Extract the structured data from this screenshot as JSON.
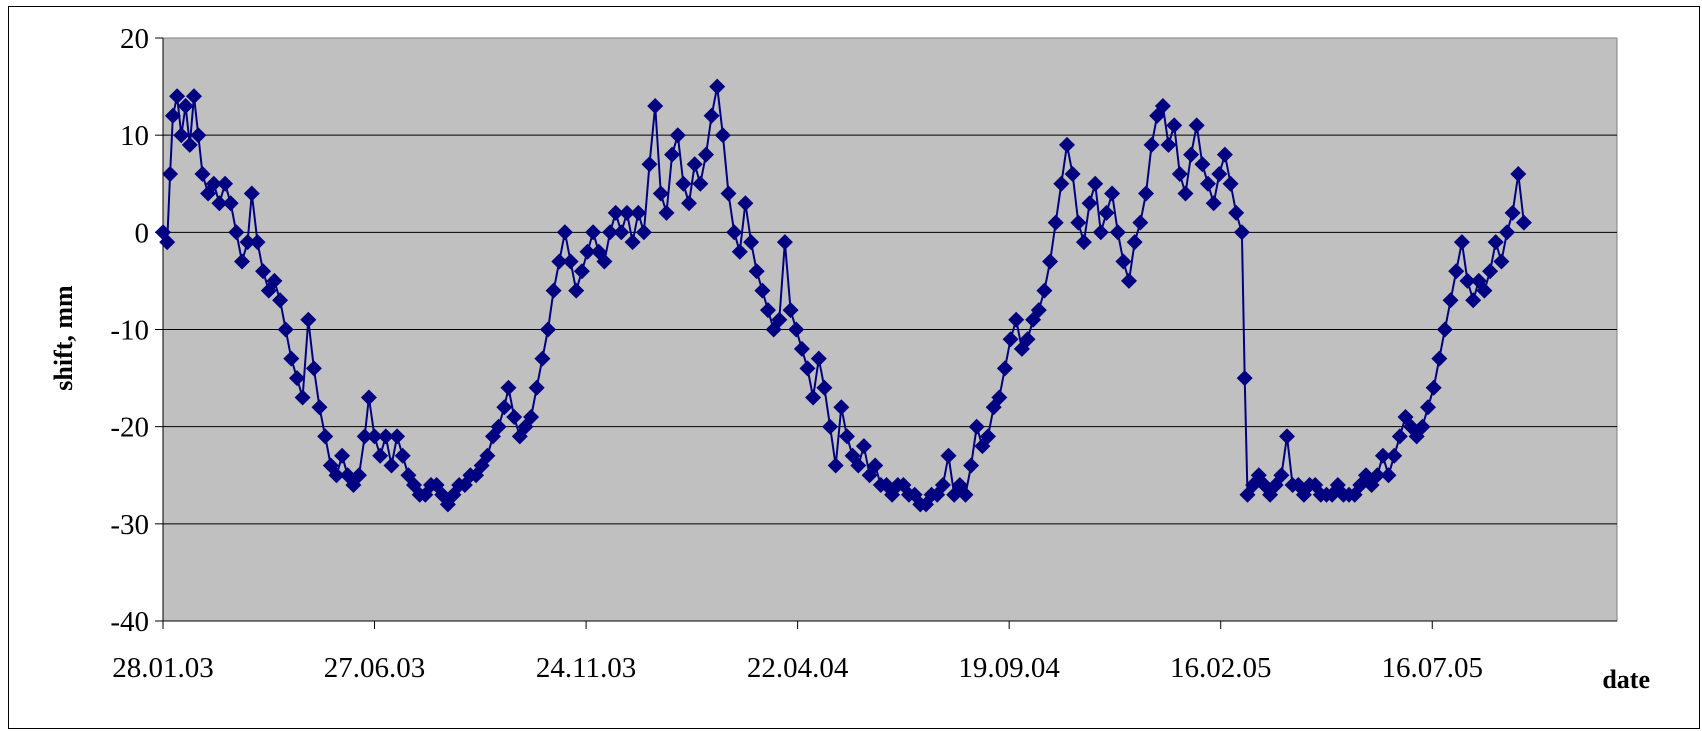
{
  "chart_data": {
    "type": "line",
    "title": "",
    "xlabel": "date",
    "ylabel": "shift, mm",
    "ylim": [
      -40,
      20
    ],
    "yticks": [
      20,
      10,
      0,
      -10,
      -20,
      -30,
      -40
    ],
    "xlim": [
      "28.01.03",
      "24.11.05"
    ],
    "xticks": [
      "28.01.03",
      "27.06.03",
      "24.11.03",
      "22.04.04",
      "19.09.04",
      "16.02.05",
      "16.07.05"
    ],
    "grid": "horizontal",
    "legend": "none",
    "colors": {
      "plot_background": "#c0c0c0",
      "series": "#000080",
      "gridline": "#000000"
    },
    "series": [
      {
        "marker": "diamond",
        "points": [
          {
            "x": "28.01.03",
            "y": 0
          },
          {
            "x": "31.01.03",
            "y": -1
          },
          {
            "x": "02.02.03",
            "y": 6
          },
          {
            "x": "04.02.03",
            "y": 12
          },
          {
            "x": "07.02.03",
            "y": 14
          },
          {
            "x": "10.02.03",
            "y": 10
          },
          {
            "x": "13.02.03",
            "y": 13
          },
          {
            "x": "16.02.03",
            "y": 9
          },
          {
            "x": "19.02.03",
            "y": 14
          },
          {
            "x": "22.02.03",
            "y": 10
          },
          {
            "x": "25.02.03",
            "y": 6
          },
          {
            "x": "01.03.03",
            "y": 4
          },
          {
            "x": "05.03.03",
            "y": 5
          },
          {
            "x": "09.03.03",
            "y": 3
          },
          {
            "x": "13.03.03",
            "y": 5
          },
          {
            "x": "17.03.03",
            "y": 3
          },
          {
            "x": "21.03.03",
            "y": 0
          },
          {
            "x": "25.03.03",
            "y": -3
          },
          {
            "x": "29.03.03",
            "y": -1
          },
          {
            "x": "01.04.03",
            "y": 4
          },
          {
            "x": "05.04.03",
            "y": -1
          },
          {
            "x": "09.04.03",
            "y": -4
          },
          {
            "x": "13.04.03",
            "y": -6
          },
          {
            "x": "17.04.03",
            "y": -5
          },
          {
            "x": "21.04.03",
            "y": -7
          },
          {
            "x": "25.04.03",
            "y": -10
          },
          {
            "x": "29.04.03",
            "y": -13
          },
          {
            "x": "03.05.03",
            "y": -15
          },
          {
            "x": "07.05.03",
            "y": -17
          },
          {
            "x": "11.05.03",
            "y": -9
          },
          {
            "x": "15.05.03",
            "y": -14
          },
          {
            "x": "19.05.03",
            "y": -18
          },
          {
            "x": "23.05.03",
            "y": -21
          },
          {
            "x": "27.05.03",
            "y": -24
          },
          {
            "x": "31.05.03",
            "y": -25
          },
          {
            "x": "04.06.03",
            "y": -23
          },
          {
            "x": "08.06.03",
            "y": -25
          },
          {
            "x": "12.06.03",
            "y": -26
          },
          {
            "x": "16.06.03",
            "y": -25
          },
          {
            "x": "20.06.03",
            "y": -21
          },
          {
            "x": "23.06.03",
            "y": -17
          },
          {
            "x": "27.06.03",
            "y": -21
          },
          {
            "x": "01.07.03",
            "y": -23
          },
          {
            "x": "05.07.03",
            "y": -21
          },
          {
            "x": "09.07.03",
            "y": -24
          },
          {
            "x": "13.07.03",
            "y": -21
          },
          {
            "x": "17.07.03",
            "y": -23
          },
          {
            "x": "21.07.03",
            "y": -25
          },
          {
            "x": "25.07.03",
            "y": -26
          },
          {
            "x": "29.07.03",
            "y": -27
          },
          {
            "x": "02.08.03",
            "y": -27
          },
          {
            "x": "06.08.03",
            "y": -26
          },
          {
            "x": "10.08.03",
            "y": -26
          },
          {
            "x": "14.08.03",
            "y": -27
          },
          {
            "x": "18.08.03",
            "y": -28
          },
          {
            "x": "22.08.03",
            "y": -27
          },
          {
            "x": "26.08.03",
            "y": -26
          },
          {
            "x": "30.08.03",
            "y": -26
          },
          {
            "x": "03.09.03",
            "y": -25
          },
          {
            "x": "07.09.03",
            "y": -25
          },
          {
            "x": "11.09.03",
            "y": -24
          },
          {
            "x": "15.09.03",
            "y": -23
          },
          {
            "x": "19.09.03",
            "y": -21
          },
          {
            "x": "23.09.03",
            "y": -20
          },
          {
            "x": "27.09.03",
            "y": -18
          },
          {
            "x": "30.09.03",
            "y": -16
          },
          {
            "x": "04.10.03",
            "y": -19
          },
          {
            "x": "08.10.03",
            "y": -21
          },
          {
            "x": "12.10.03",
            "y": -20
          },
          {
            "x": "16.10.03",
            "y": -19
          },
          {
            "x": "20.10.03",
            "y": -16
          },
          {
            "x": "24.10.03",
            "y": -13
          },
          {
            "x": "28.10.03",
            "y": -10
          },
          {
            "x": "01.11.03",
            "y": -6
          },
          {
            "x": "05.11.03",
            "y": -3
          },
          {
            "x": "09.11.03",
            "y": 0
          },
          {
            "x": "13.11.03",
            "y": -3
          },
          {
            "x": "17.11.03",
            "y": -6
          },
          {
            "x": "21.11.03",
            "y": -4
          },
          {
            "x": "25.11.03",
            "y": -2
          },
          {
            "x": "29.11.03",
            "y": 0
          },
          {
            "x": "03.12.03",
            "y": -2
          },
          {
            "x": "07.12.03",
            "y": -3
          },
          {
            "x": "11.12.03",
            "y": 0
          },
          {
            "x": "15.12.03",
            "y": 2
          },
          {
            "x": "19.12.03",
            "y": 0
          },
          {
            "x": "23.12.03",
            "y": 2
          },
          {
            "x": "27.12.03",
            "y": -1
          },
          {
            "x": "31.12.03",
            "y": 2
          },
          {
            "x": "04.01.04",
            "y": 0
          },
          {
            "x": "08.01.04",
            "y": 7
          },
          {
            "x": "12.01.04",
            "y": 13
          },
          {
            "x": "16.01.04",
            "y": 4
          },
          {
            "x": "20.01.04",
            "y": 2
          },
          {
            "x": "24.01.04",
            "y": 8
          },
          {
            "x": "28.01.04",
            "y": 10
          },
          {
            "x": "01.02.04",
            "y": 5
          },
          {
            "x": "05.02.04",
            "y": 3
          },
          {
            "x": "09.02.04",
            "y": 7
          },
          {
            "x": "13.02.04",
            "y": 5
          },
          {
            "x": "17.02.04",
            "y": 8
          },
          {
            "x": "21.02.04",
            "y": 12
          },
          {
            "x": "25.02.04",
            "y": 15
          },
          {
            "x": "29.02.04",
            "y": 10
          },
          {
            "x": "04.03.04",
            "y": 4
          },
          {
            "x": "08.03.04",
            "y": 0
          },
          {
            "x": "12.03.04",
            "y": -2
          },
          {
            "x": "16.03.04",
            "y": 3
          },
          {
            "x": "20.03.04",
            "y": -1
          },
          {
            "x": "24.03.04",
            "y": -4
          },
          {
            "x": "28.03.04",
            "y": -6
          },
          {
            "x": "01.04.04",
            "y": -8
          },
          {
            "x": "05.04.04",
            "y": -10
          },
          {
            "x": "09.04.04",
            "y": -9
          },
          {
            "x": "13.04.04",
            "y": -1
          },
          {
            "x": "17.04.04",
            "y": -8
          },
          {
            "x": "21.04.04",
            "y": -10
          },
          {
            "x": "25.04.04",
            "y": -12
          },
          {
            "x": "29.04.04",
            "y": -14
          },
          {
            "x": "03.05.04",
            "y": -17
          },
          {
            "x": "07.05.04",
            "y": -13
          },
          {
            "x": "11.05.04",
            "y": -16
          },
          {
            "x": "15.05.04",
            "y": -20
          },
          {
            "x": "19.05.04",
            "y": -24
          },
          {
            "x": "23.05.04",
            "y": -18
          },
          {
            "x": "27.05.04",
            "y": -21
          },
          {
            "x": "31.05.04",
            "y": -23
          },
          {
            "x": "04.06.04",
            "y": -24
          },
          {
            "x": "08.06.04",
            "y": -22
          },
          {
            "x": "12.06.04",
            "y": -25
          },
          {
            "x": "16.06.04",
            "y": -24
          },
          {
            "x": "20.06.04",
            "y": -26
          },
          {
            "x": "24.06.04",
            "y": -26
          },
          {
            "x": "28.06.04",
            "y": -27
          },
          {
            "x": "02.07.04",
            "y": -26
          },
          {
            "x": "06.07.04",
            "y": -26
          },
          {
            "x": "10.07.04",
            "y": -27
          },
          {
            "x": "14.07.04",
            "y": -27
          },
          {
            "x": "18.07.04",
            "y": -28
          },
          {
            "x": "22.07.04",
            "y": -28
          },
          {
            "x": "26.07.04",
            "y": -27
          },
          {
            "x": "30.07.04",
            "y": -27
          },
          {
            "x": "03.08.04",
            "y": -26
          },
          {
            "x": "07.08.04",
            "y": -23
          },
          {
            "x": "11.08.04",
            "y": -27
          },
          {
            "x": "15.08.04",
            "y": -26
          },
          {
            "x": "19.08.04",
            "y": -27
          },
          {
            "x": "23.08.04",
            "y": -24
          },
          {
            "x": "27.08.04",
            "y": -20
          },
          {
            "x": "31.08.04",
            "y": -22
          },
          {
            "x": "04.09.04",
            "y": -21
          },
          {
            "x": "08.09.04",
            "y": -18
          },
          {
            "x": "12.09.04",
            "y": -17
          },
          {
            "x": "16.09.04",
            "y": -14
          },
          {
            "x": "20.09.04",
            "y": -11
          },
          {
            "x": "24.09.04",
            "y": -9
          },
          {
            "x": "28.09.04",
            "y": -12
          },
          {
            "x": "02.10.04",
            "y": -11
          },
          {
            "x": "06.10.04",
            "y": -9
          },
          {
            "x": "10.10.04",
            "y": -8
          },
          {
            "x": "14.10.04",
            "y": -6
          },
          {
            "x": "18.10.04",
            "y": -3
          },
          {
            "x": "22.10.04",
            "y": 1
          },
          {
            "x": "26.10.04",
            "y": 5
          },
          {
            "x": "30.10.04",
            "y": 9
          },
          {
            "x": "03.11.04",
            "y": 6
          },
          {
            "x": "07.11.04",
            "y": 1
          },
          {
            "x": "11.11.04",
            "y": -1
          },
          {
            "x": "15.11.04",
            "y": 3
          },
          {
            "x": "19.11.04",
            "y": 5
          },
          {
            "x": "23.11.04",
            "y": 0
          },
          {
            "x": "27.11.04",
            "y": 2
          },
          {
            "x": "01.12.04",
            "y": 4
          },
          {
            "x": "05.12.04",
            "y": 0
          },
          {
            "x": "09.12.04",
            "y": -3
          },
          {
            "x": "13.12.04",
            "y": -5
          },
          {
            "x": "17.12.04",
            "y": -1
          },
          {
            "x": "21.12.04",
            "y": 1
          },
          {
            "x": "25.12.04",
            "y": 4
          },
          {
            "x": "29.12.04",
            "y": 9
          },
          {
            "x": "02.01.05",
            "y": 12
          },
          {
            "x": "06.01.05",
            "y": 13
          },
          {
            "x": "10.01.05",
            "y": 9
          },
          {
            "x": "14.01.05",
            "y": 11
          },
          {
            "x": "18.01.05",
            "y": 6
          },
          {
            "x": "22.01.05",
            "y": 4
          },
          {
            "x": "26.01.05",
            "y": 8
          },
          {
            "x": "30.01.05",
            "y": 11
          },
          {
            "x": "03.02.05",
            "y": 7
          },
          {
            "x": "07.02.05",
            "y": 5
          },
          {
            "x": "11.02.05",
            "y": 3
          },
          {
            "x": "15.02.05",
            "y": 6
          },
          {
            "x": "19.02.05",
            "y": 8
          },
          {
            "x": "23.02.05",
            "y": 5
          },
          {
            "x": "27.02.05",
            "y": 2
          },
          {
            "x": "03.03.05",
            "y": 0
          },
          {
            "x": "05.03.05",
            "y": -15
          },
          {
            "x": "07.03.05",
            "y": -27
          },
          {
            "x": "11.03.05",
            "y": -26
          },
          {
            "x": "15.03.05",
            "y": -25
          },
          {
            "x": "19.03.05",
            "y": -26
          },
          {
            "x": "23.03.05",
            "y": -27
          },
          {
            "x": "27.03.05",
            "y": -26
          },
          {
            "x": "31.03.05",
            "y": -25
          },
          {
            "x": "04.04.05",
            "y": -21
          },
          {
            "x": "08.04.05",
            "y": -26
          },
          {
            "x": "12.04.05",
            "y": -26
          },
          {
            "x": "16.04.05",
            "y": -27
          },
          {
            "x": "20.04.05",
            "y": -26
          },
          {
            "x": "24.04.05",
            "y": -26
          },
          {
            "x": "28.04.05",
            "y": -27
          },
          {
            "x": "02.05.05",
            "y": -27
          },
          {
            "x": "06.05.05",
            "y": -27
          },
          {
            "x": "10.05.05",
            "y": -26
          },
          {
            "x": "14.05.05",
            "y": -27
          },
          {
            "x": "18.05.05",
            "y": -27
          },
          {
            "x": "22.05.05",
            "y": -27
          },
          {
            "x": "26.05.05",
            "y": -26
          },
          {
            "x": "30.05.05",
            "y": -25
          },
          {
            "x": "03.06.05",
            "y": -26
          },
          {
            "x": "07.06.05",
            "y": -25
          },
          {
            "x": "11.06.05",
            "y": -23
          },
          {
            "x": "15.06.05",
            "y": -25
          },
          {
            "x": "19.06.05",
            "y": -23
          },
          {
            "x": "23.06.05",
            "y": -21
          },
          {
            "x": "27.06.05",
            "y": -19
          },
          {
            "x": "01.07.05",
            "y": -20
          },
          {
            "x": "05.07.05",
            "y": -21
          },
          {
            "x": "09.07.05",
            "y": -20
          },
          {
            "x": "13.07.05",
            "y": -18
          },
          {
            "x": "17.07.05",
            "y": -16
          },
          {
            "x": "21.07.05",
            "y": -13
          },
          {
            "x": "25.07.05",
            "y": -10
          },
          {
            "x": "29.07.05",
            "y": -7
          },
          {
            "x": "02.08.05",
            "y": -4
          },
          {
            "x": "06.08.05",
            "y": -1
          },
          {
            "x": "10.08.05",
            "y": -5
          },
          {
            "x": "14.08.05",
            "y": -7
          },
          {
            "x": "18.08.05",
            "y": -5
          },
          {
            "x": "22.08.05",
            "y": -6
          },
          {
            "x": "26.08.05",
            "y": -4
          },
          {
            "x": "30.08.05",
            "y": -1
          },
          {
            "x": "03.09.05",
            "y": -3
          },
          {
            "x": "07.09.05",
            "y": 0
          },
          {
            "x": "11.09.05",
            "y": 2
          },
          {
            "x": "15.09.05",
            "y": 6
          },
          {
            "x": "19.09.05",
            "y": 1
          }
        ]
      }
    ]
  }
}
